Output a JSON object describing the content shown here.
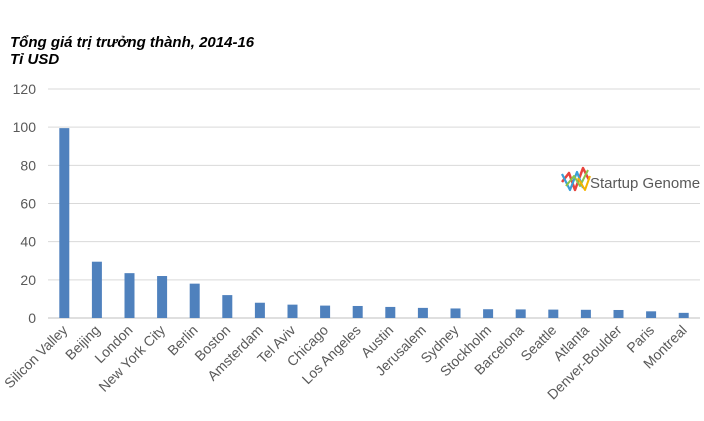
{
  "chart_data": {
    "type": "bar",
    "title": "Tổng giá trị trưởng thành, 2014-16",
    "subtitle": "Tỉ USD",
    "categories": [
      "Silicon Valley",
      "Beijing",
      "London",
      "New York City",
      "Berlin",
      "Boston",
      "Amsterdam",
      "Tel Aviv",
      "Chicago",
      "Los Angeles",
      "Austin",
      "Jerusalem",
      "Sydney",
      "Stockholm",
      "Barcelona",
      "Seattle",
      "Atlanta",
      "Denver-Boulder",
      "Paris",
      "Montreal"
    ],
    "values": [
      99.5,
      29.5,
      23.5,
      22,
      18,
      12,
      8,
      7,
      6.5,
      6.3,
      5.8,
      5.3,
      5,
      4.6,
      4.5,
      4.4,
      4.3,
      4.2,
      3.5,
      2.7
    ],
    "ylim": [
      0,
      120
    ],
    "yticks": [
      0,
      20,
      40,
      60,
      80,
      100,
      120
    ],
    "grid": true,
    "bar_color": "#4f81bd"
  },
  "watermark": {
    "text": "Startup Genome",
    "icon": "startup-genome-logo-icon"
  }
}
